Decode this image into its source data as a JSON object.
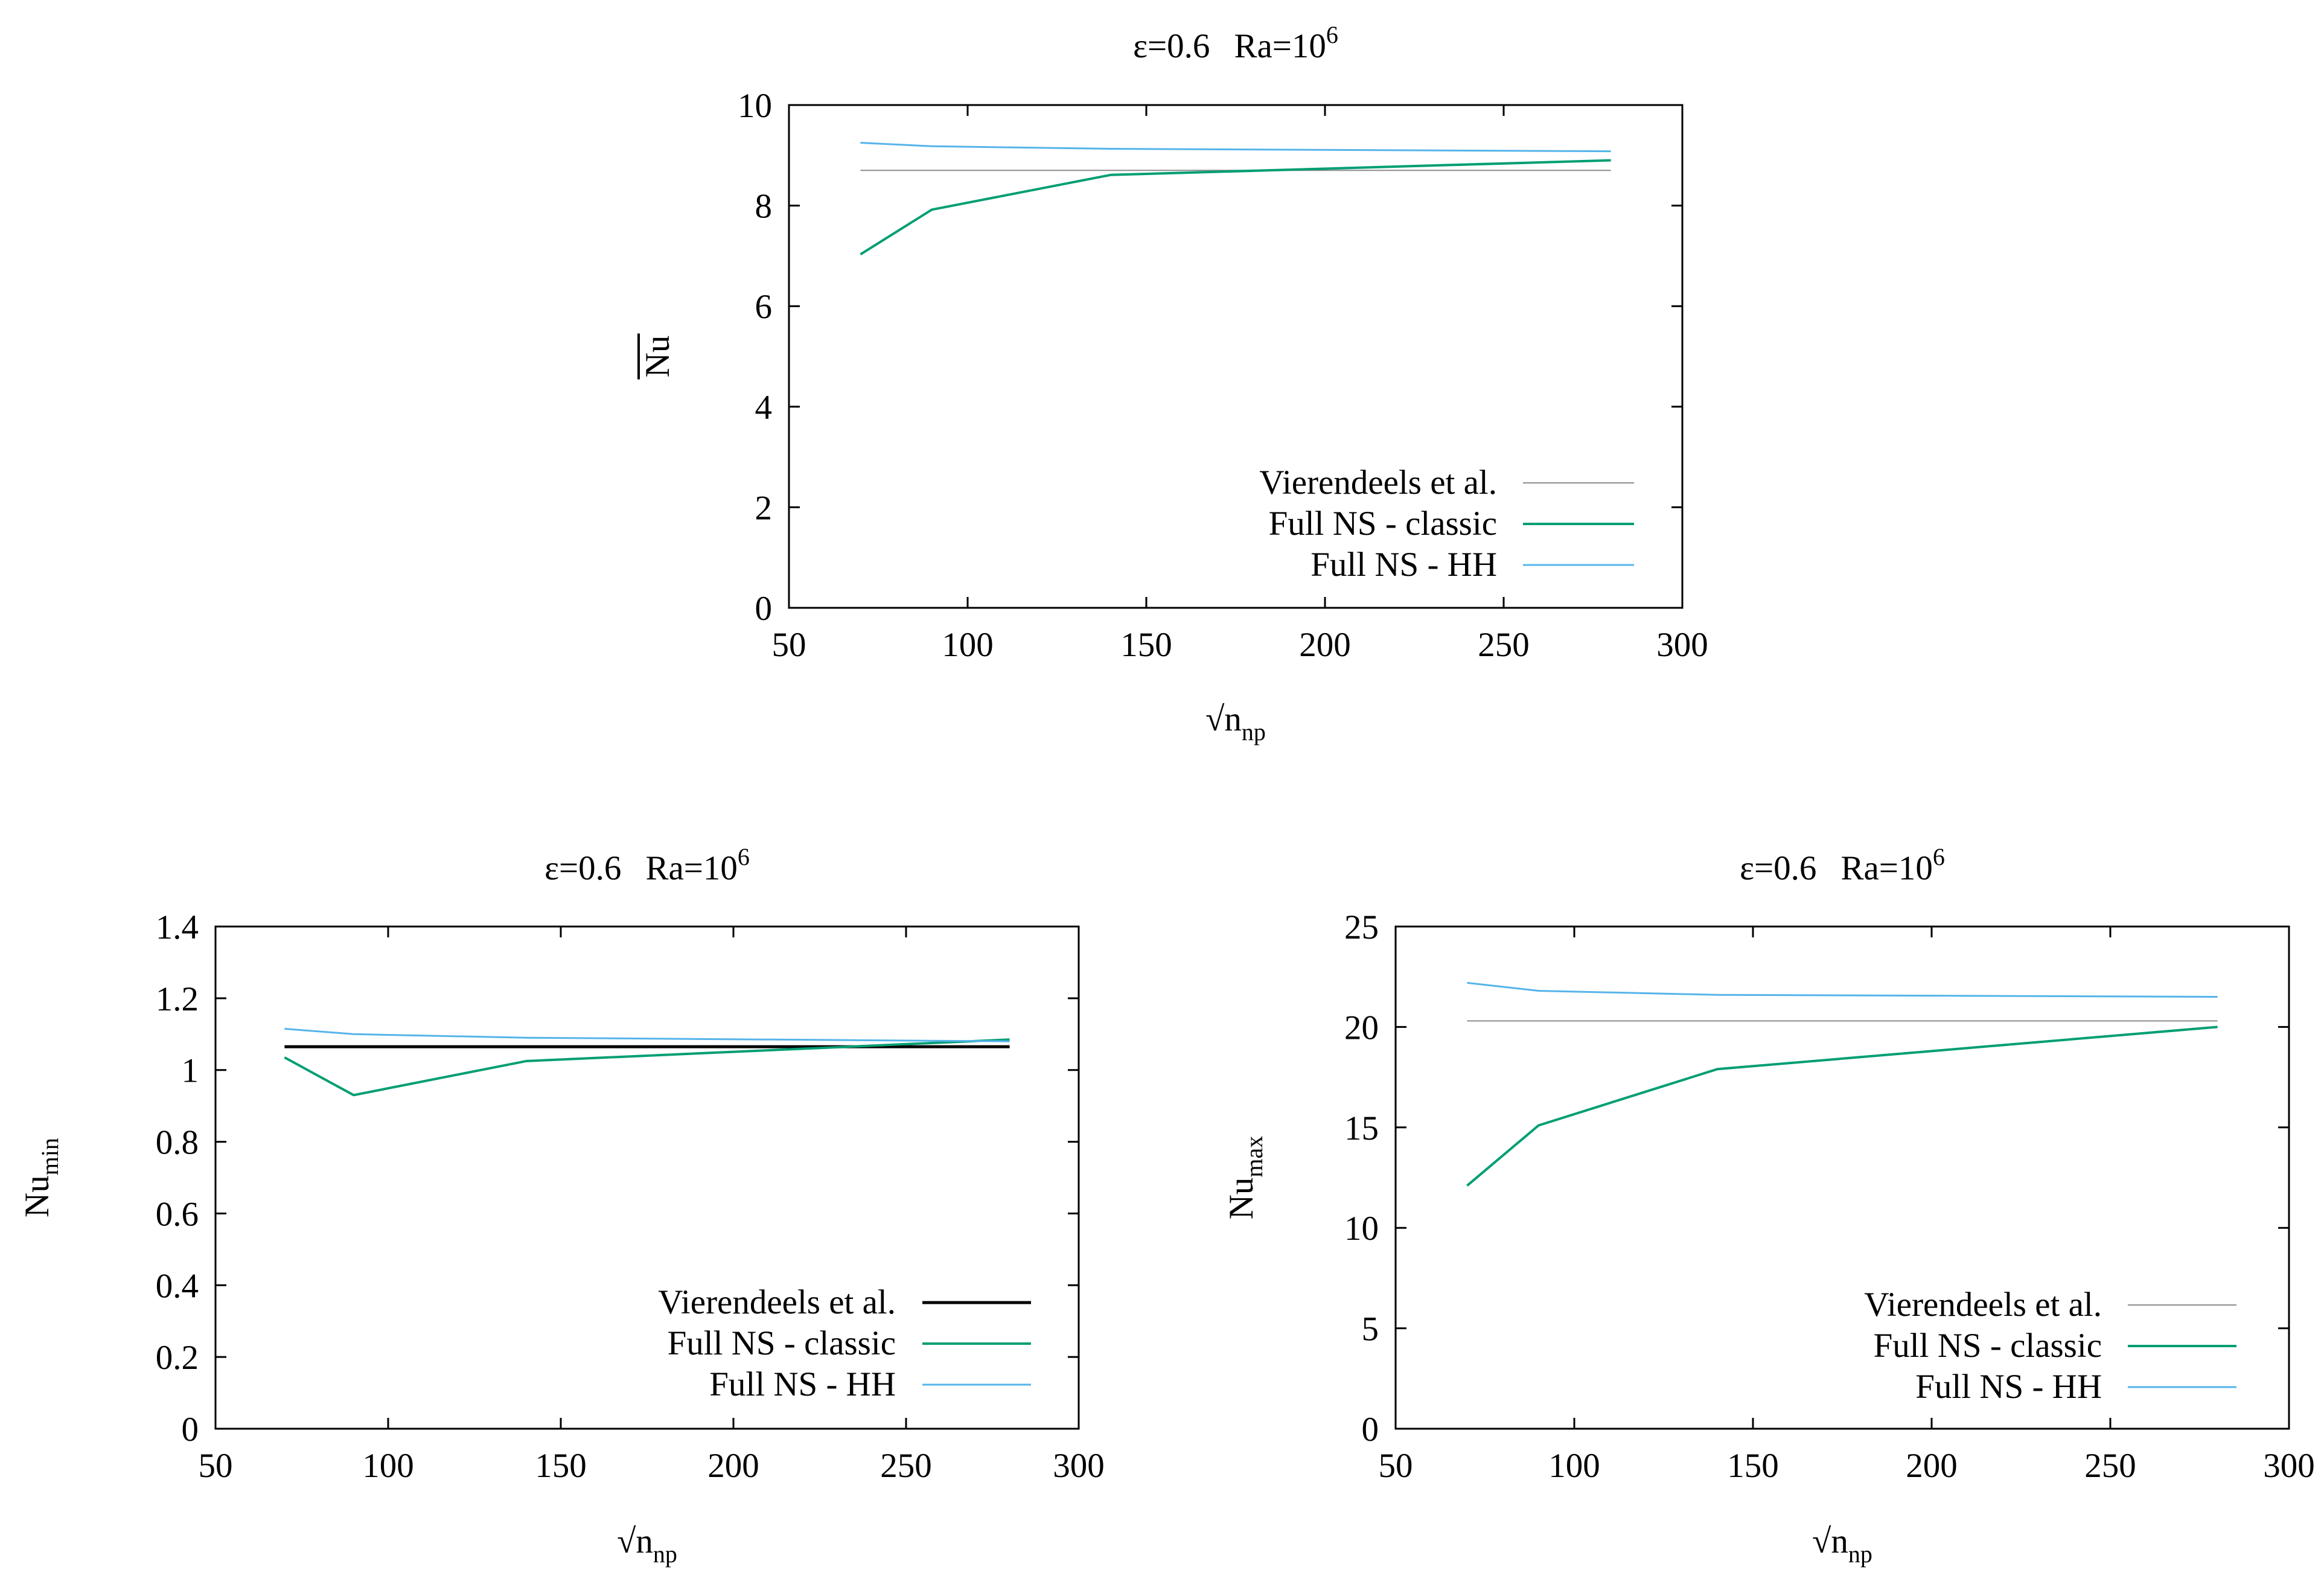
{
  "chart_data": [
    {
      "type": "line",
      "title": {
        "eps": "ε=0.6",
        "ra": "Ra=10",
        "ra_exp": "6"
      },
      "xlabel": {
        "root": "√n",
        "sub": "np"
      },
      "ylabel": {
        "text": "Nu",
        "overline": true
      },
      "xlim": [
        50,
        300
      ],
      "ylim": [
        0,
        10
      ],
      "xticks": [
        50,
        100,
        150,
        200,
        250,
        300
      ],
      "yticks": [
        0,
        2,
        4,
        6,
        8,
        10
      ],
      "legend_position": "bottom-right",
      "series": [
        {
          "name": "Vierendeels et al.",
          "color": "#8c8c8c",
          "width": 2,
          "x": [
            70,
            280
          ],
          "y": [
            8.7,
            8.7
          ]
        },
        {
          "name": "Full NS - classic",
          "color": "#009e73",
          "width": 4,
          "x": [
            70,
            90,
            140,
            280
          ],
          "y": [
            7.03,
            7.92,
            8.61,
            8.9
          ]
        },
        {
          "name": "Full NS - HH",
          "color": "#56b4e9",
          "width": 3,
          "x": [
            70,
            90,
            140,
            280
          ],
          "y": [
            9.25,
            9.18,
            9.13,
            9.08
          ]
        }
      ]
    },
    {
      "type": "line",
      "title": {
        "eps": "ε=0.6",
        "ra": "Ra=10",
        "ra_exp": "6"
      },
      "xlabel": {
        "root": "√n",
        "sub": "np"
      },
      "ylabel": {
        "text": "Nu",
        "sub": "min"
      },
      "xlim": [
        50,
        300
      ],
      "ylim": [
        0,
        1.4
      ],
      "xticks": [
        50,
        100,
        150,
        200,
        250,
        300
      ],
      "yticks": [
        "0",
        "0.2",
        "0.4",
        "0.6",
        "0.8",
        "1",
        "1.2",
        "1.4"
      ],
      "legend_position": "bottom-right",
      "series": [
        {
          "name": "Vierendeels et al.",
          "color": "#000000",
          "width": 5,
          "x": [
            70,
            280
          ],
          "y": [
            1.065,
            1.065
          ]
        },
        {
          "name": "Full NS - classic",
          "color": "#009e73",
          "width": 4,
          "x": [
            70,
            90,
            140,
            280
          ],
          "y": [
            1.035,
            0.93,
            1.025,
            1.085
          ]
        },
        {
          "name": "Full NS - HH",
          "color": "#56b4e9",
          "width": 3,
          "x": [
            70,
            90,
            140,
            280
          ],
          "y": [
            1.115,
            1.1,
            1.09,
            1.08
          ]
        }
      ]
    },
    {
      "type": "line",
      "title": {
        "eps": "ε=0.6",
        "ra": "Ra=10",
        "ra_exp": "6"
      },
      "xlabel": {
        "root": "√n",
        "sub": "np"
      },
      "ylabel": {
        "text": "Nu",
        "sub": "max"
      },
      "xlim": [
        50,
        300
      ],
      "ylim": [
        0,
        25
      ],
      "xticks": [
        50,
        100,
        150,
        200,
        250,
        300
      ],
      "yticks": [
        0,
        5,
        10,
        15,
        20,
        25
      ],
      "legend_position": "bottom-right",
      "series": [
        {
          "name": "Vierendeels et al.",
          "color": "#8c8c8c",
          "width": 2,
          "x": [
            70,
            280
          ],
          "y": [
            20.3,
            20.3
          ]
        },
        {
          "name": "Full NS - classic",
          "color": "#009e73",
          "width": 4,
          "x": [
            70,
            90,
            140,
            280
          ],
          "y": [
            12.1,
            15.1,
            17.9,
            20.0
          ]
        },
        {
          "name": "Full NS - HH",
          "color": "#56b4e9",
          "width": 3,
          "x": [
            70,
            90,
            140,
            280
          ],
          "y": [
            22.2,
            21.8,
            21.6,
            21.5
          ]
        }
      ]
    }
  ]
}
